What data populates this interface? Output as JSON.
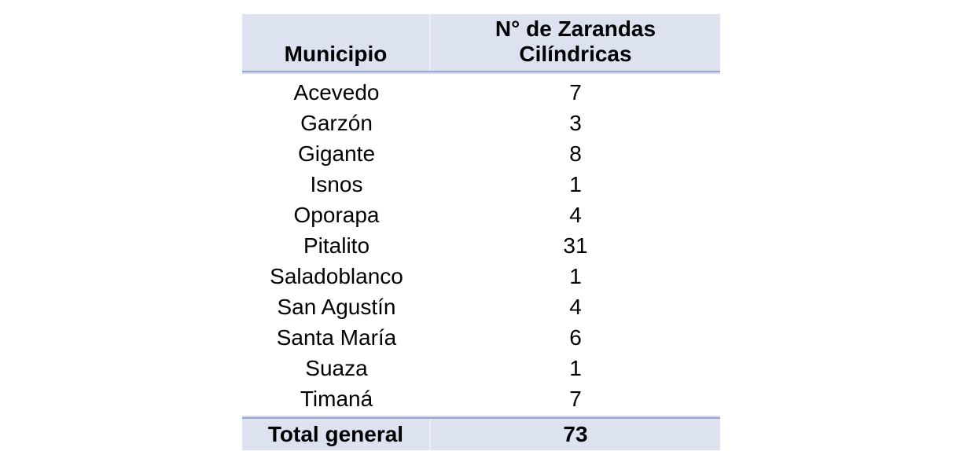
{
  "table": {
    "header": {
      "municipio": "Municipio",
      "zarandas": "N° de Zarandas\nCilíndricas"
    }
  },
  "chart_data": {
    "type": "table",
    "title": "",
    "columns": [
      "Municipio",
      "N° de Zarandas Cilíndricas"
    ],
    "rows": [
      [
        "Acevedo",
        7
      ],
      [
        "Garzón",
        3
      ],
      [
        "Gigante",
        8
      ],
      [
        "Isnos",
        1
      ],
      [
        "Oporapa",
        4
      ],
      [
        "Pitalito",
        31
      ],
      [
        "Saladoblanco",
        1
      ],
      [
        "San Agustín",
        4
      ],
      [
        "Santa María",
        6
      ],
      [
        "Suaza",
        1
      ],
      [
        "Timaná",
        7
      ]
    ],
    "total_row": [
      "Total general",
      73
    ],
    "layout": "pivot table; shaded header and grand-total rows; values centered"
  },
  "colors": {
    "header_bg": "#dce2f0",
    "border_dark": "#98a8d0",
    "border_light": "#cfd8ec",
    "column_divider": "#e9eef7",
    "text": "#000000",
    "page_bg": "#ffffff"
  }
}
